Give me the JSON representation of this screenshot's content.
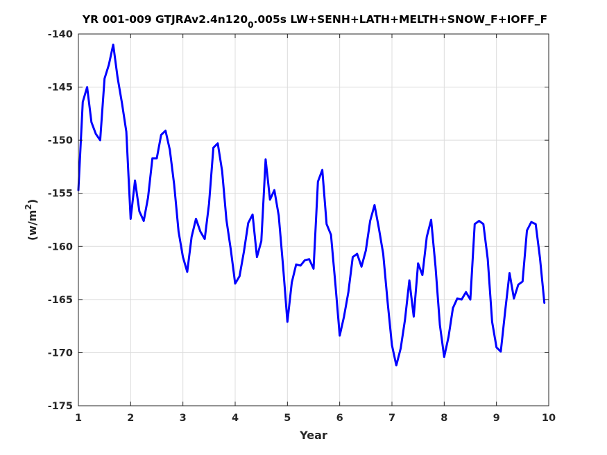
{
  "chart_data": {
    "type": "line",
    "title": {
      "prefix": "YR 001-009 GTJRAv2.4n120",
      "subscript": "0",
      "suffix": ".005s LW+SENH+LATH+MELTH+SNOW_F+IOFF_F"
    },
    "xlabel": "Year",
    "ylabel": {
      "prefix": "(w/m",
      "superscript": "2",
      "suffix": ")"
    },
    "xlim": [
      1,
      10
    ],
    "ylim": [
      -175,
      -140
    ],
    "xticks": [
      "1",
      "2",
      "3",
      "4",
      "5",
      "6",
      "7",
      "8",
      "9",
      "10"
    ],
    "yticks": [
      "-140",
      "-145",
      "-150",
      "-155",
      "-160",
      "-165",
      "-170",
      "-175"
    ],
    "grid": true,
    "line_color": "#0000ff",
    "series": [
      {
        "x": [
          1.0,
          1.083,
          1.167,
          1.25,
          1.333,
          1.417,
          1.5,
          1.583,
          1.667,
          1.75,
          1.833,
          1.917,
          2.0,
          2.083,
          2.167,
          2.25,
          2.333,
          2.417,
          2.5,
          2.583,
          2.667,
          2.75,
          2.833,
          2.917,
          3.0,
          3.083,
          3.167,
          3.25,
          3.333,
          3.417,
          3.5,
          3.583,
          3.667,
          3.75,
          3.833,
          3.917,
          4.0,
          4.083,
          4.167,
          4.25,
          4.333,
          4.417,
          4.5,
          4.583,
          4.667,
          4.75,
          4.833,
          4.917,
          5.0,
          5.083,
          5.167,
          5.25,
          5.333,
          5.417,
          5.5,
          5.583,
          5.667,
          5.75,
          5.833,
          5.917,
          6.0,
          6.083,
          6.167,
          6.25,
          6.333,
          6.417,
          6.5,
          6.583,
          6.667,
          6.75,
          6.833,
          6.917,
          7.0,
          7.083,
          7.167,
          7.25,
          7.333,
          7.417,
          7.5,
          7.583,
          7.667,
          7.75,
          7.833,
          7.917,
          8.0,
          8.083,
          8.167,
          8.25,
          8.333,
          8.417,
          8.5,
          8.583,
          8.667,
          8.75,
          8.833,
          8.917,
          9.0,
          9.083,
          9.167,
          9.25,
          9.333,
          9.417,
          9.5,
          9.583,
          9.667,
          9.75,
          9.833,
          9.917
        ],
        "y": [
          -154.7,
          -146.4,
          -145.0,
          -148.3,
          -149.4,
          -150.0,
          -144.2,
          -142.9,
          -141.0,
          -144.1,
          -146.5,
          -149.2,
          -157.4,
          -153.8,
          -156.7,
          -157.6,
          -155.4,
          -151.7,
          -151.7,
          -149.5,
          -149.1,
          -150.9,
          -154.2,
          -158.6,
          -161.0,
          -162.4,
          -159.1,
          -157.4,
          -158.6,
          -159.3,
          -156.0,
          -150.7,
          -150.3,
          -152.9,
          -157.5,
          -160.3,
          -163.5,
          -162.8,
          -160.5,
          -157.8,
          -157.0,
          -161.0,
          -159.5,
          -151.8,
          -155.6,
          -154.7,
          -157.1,
          -161.9,
          -167.1,
          -163.4,
          -161.7,
          -161.8,
          -161.3,
          -161.2,
          -162.1,
          -153.9,
          -152.8,
          -157.9,
          -158.9,
          -163.5,
          -168.4,
          -166.6,
          -164.3,
          -161.0,
          -160.7,
          -161.9,
          -160.4,
          -157.6,
          -156.1,
          -158.3,
          -160.7,
          -165.2,
          -169.3,
          -171.2,
          -169.6,
          -166.9,
          -163.2,
          -166.6,
          -161.6,
          -162.7,
          -159.1,
          -157.5,
          -161.9,
          -167.4,
          -170.4,
          -168.5,
          -165.8,
          -164.9,
          -165.0,
          -164.3,
          -165.0,
          -157.9,
          -157.6,
          -157.9,
          -161.2,
          -167.1,
          -169.5,
          -169.9,
          -166.1,
          -162.5,
          -164.9,
          -163.6,
          -163.3,
          -158.5,
          -157.7,
          -157.9,
          -161.1,
          -165.3
        ]
      }
    ]
  }
}
